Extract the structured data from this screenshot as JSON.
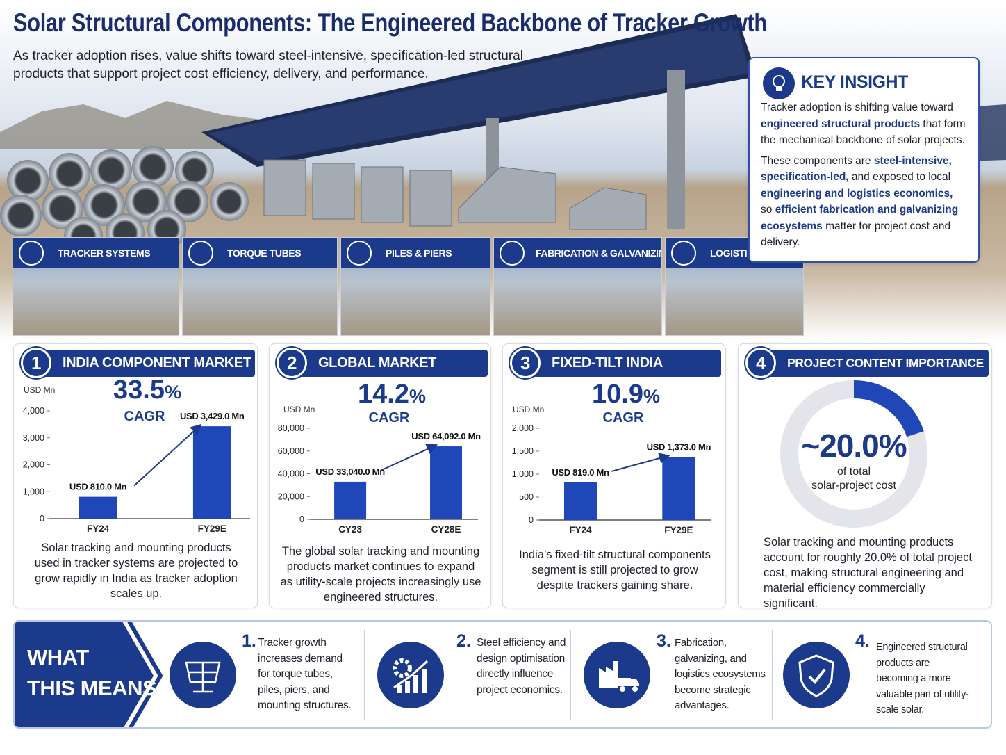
{
  "header": {
    "title": "Solar Structural Components: The Engineered Backbone of Tracker Growth",
    "subtitle": "As tracker adoption rises, value shifts toward steel-intensive, specification-led structural products that support project cost efficiency, delivery, and performance."
  },
  "key_insight": {
    "title": "KEY INSIGHT",
    "paragraphs": [
      [
        {
          "text": "Tracker adoption is shifting value toward "
        },
        {
          "text": "engineered structural products",
          "emphasis": true
        },
        {
          "text": " that form the mechanical backbone of solar projects."
        }
      ],
      [
        {
          "text": "These components are "
        },
        {
          "text": "steel-intensive, specification-led,",
          "emphasis": true
        },
        {
          "text": " and exposed to local "
        },
        {
          "text": "engineering and logistics economics,",
          "emphasis": true
        },
        {
          "text": " so "
        },
        {
          "text": "efficient fabrication and galvanizing ecosystems",
          "emphasis": true
        },
        {
          "text": " matter for project cost and delivery."
        }
      ]
    ]
  },
  "components": [
    "TRACKER SYSTEMS",
    "TORQUE TUBES",
    "PILES & PIERS",
    "FABRICATION & GALVANIZING",
    "LOGISTICS"
  ],
  "markets": [
    {
      "number": "1",
      "title": "INDIA COMPONENT MARKET",
      "chart_data": {
        "type": "bar",
        "unit": "USD Mn",
        "headline": "33.5",
        "headline_unit": "%",
        "headline_label": "CAGR",
        "categories": [
          "FY24",
          "FY29E"
        ],
        "values": [
          810,
          3429
        ],
        "value_labels": [
          "USD 810.0 Mn",
          "USD 3,429.0 Mn"
        ],
        "color": "#1f47b8",
        "ylim": [
          0,
          4000
        ],
        "yticks": [
          0,
          {
            "value": 1000,
            "label": "1,000"
          },
          {
            "value": 2000,
            "label": "2,000"
          },
          {
            "value": 3000,
            "label": "3,000"
          },
          {
            "value": 4000,
            "label": "4,000"
          }
        ]
      },
      "description": "Solar tracking and mounting products used in tracker systems are projected to grow rapidly in India as tracker adoption scales up."
    },
    {
      "number": "2",
      "title": "GLOBAL MARKET",
      "chart_data": {
        "type": "bar",
        "unit": "USD Mn",
        "headline": "14.2",
        "headline_unit": "%",
        "headline_label": "CAGR",
        "categories": [
          "CY23",
          "CY28E"
        ],
        "values": [
          33040,
          64092
        ],
        "value_labels": [
          "USD 33,040.0 Mn",
          "USD 64,092.0 Mn"
        ],
        "color": "#1f47b8",
        "ylim": [
          0,
          80000
        ],
        "yticks": [
          0,
          {
            "value": 20000,
            "label": "20,000"
          },
          {
            "value": 40000,
            "label": "40,000"
          },
          {
            "value": 60000,
            "label": "60,000"
          },
          {
            "value": 80000,
            "label": "80,000"
          }
        ]
      },
      "description": "The global solar tracking and mounting products market continues to expand as utility-scale projects increasingly use engineered structures."
    },
    {
      "number": "3",
      "title": "FIXED-TILT INDIA",
      "chart_data": {
        "type": "bar",
        "unit": "USD Mn",
        "headline": "10.9",
        "headline_unit": "%",
        "headline_label": "CAGR",
        "categories": [
          "FY24",
          "FY29E"
        ],
        "values": [
          819,
          1373
        ],
        "value_labels": [
          "USD 819.0 Mn",
          "USD 1,373.0 Mn"
        ],
        "color": "#1f47b8",
        "ylim": [
          0,
          2000
        ],
        "yticks": [
          0,
          500,
          {
            "value": 1000,
            "label": "1,000"
          },
          {
            "value": 1500,
            "label": "1,500"
          },
          {
            "value": 2000,
            "label": "2,000"
          }
        ]
      },
      "description": "India’s fixed-tilt structural components segment is still projected to grow despite trackers gaining share."
    }
  ],
  "project_content": {
    "number": "4",
    "title": "PROJECT CONTENT IMPORTANCE",
    "chart_data": {
      "type": "donut",
      "values": [
        20
      ],
      "value_labels": [
        "~20.0%"
      ],
      "caption": [
        "of total",
        "solar-project cost"
      ],
      "color": "#1f47b8",
      "track_color": "#e3e5eb"
    },
    "description": "Solar tracking and mounting products account for roughly 20.0% of total project cost, making structural engineering and material efficiency commercially significant."
  },
  "what_this_means": {
    "title": [
      "WHAT",
      "THIS MEANS"
    ],
    "items": [
      {
        "number": "1.",
        "text": "Tracker growth increases demand for torque tubes, piles, piers, and mounting structures."
      },
      {
        "number": "2.",
        "text": "Steel efficiency and design optimisation directly influence project economics."
      },
      {
        "number": "3.",
        "text": "Fabrication, galvanizing, and logistics ecosystems become strategic advantages."
      },
      {
        "number": "4.",
        "text": "Engineered structural products are becoming a more valuable part of utility-scale solar."
      }
    ]
  }
}
